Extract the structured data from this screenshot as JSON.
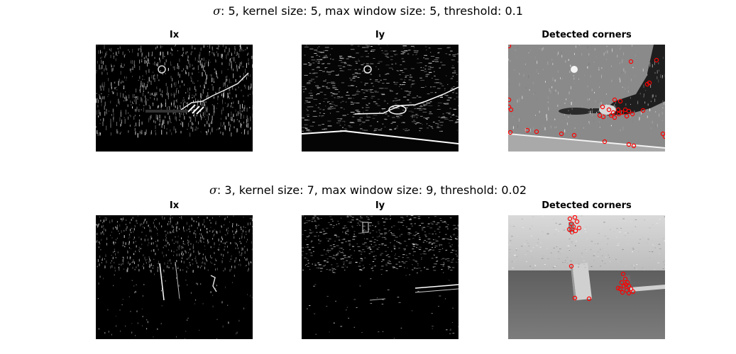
{
  "rows": [
    {
      "title_symbol": "σ",
      "title_rest": ": 5, kernel size: 5, max window size: 5, threshold: 0.1",
      "panels": [
        {
          "title": "Ix"
        },
        {
          "title": "Iy"
        },
        {
          "title": "Detected corners"
        }
      ]
    },
    {
      "title_symbol": "σ",
      "title_rest": ": 3, kernel size: 7, max window size: 9, threshold: 0.02",
      "panels": [
        {
          "title": "Ix"
        },
        {
          "title": "Iy"
        },
        {
          "title": "Detected corners"
        }
      ]
    }
  ],
  "colors": {
    "corner_marker": "#ff0000",
    "background": "#ffffff"
  }
}
